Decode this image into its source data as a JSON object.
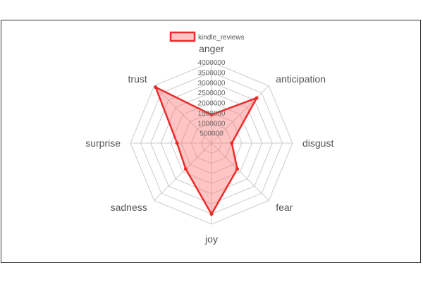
{
  "chart_data": {
    "type": "radar",
    "axes": [
      "anger",
      "anticipation",
      "disgust",
      "fear",
      "joy",
      "sadness",
      "surprise",
      "trust"
    ],
    "ticks": [
      "500000",
      "1000000",
      "1500000",
      "2000000",
      "2500000",
      "3000000",
      "3500000",
      "4000000"
    ],
    "rmax": 4000000,
    "series": [
      {
        "name": "kindle_reviews",
        "values": [
          1400000,
          3150000,
          1000000,
          1800000,
          3500000,
          1800000,
          1700000,
          3900000
        ]
      }
    ],
    "legend_position": "top",
    "grid": true,
    "colors": {
      "stroke": "#ee2a2a",
      "fill": "rgba(255,100,100,0.38)",
      "grid": "#cccccc"
    }
  }
}
